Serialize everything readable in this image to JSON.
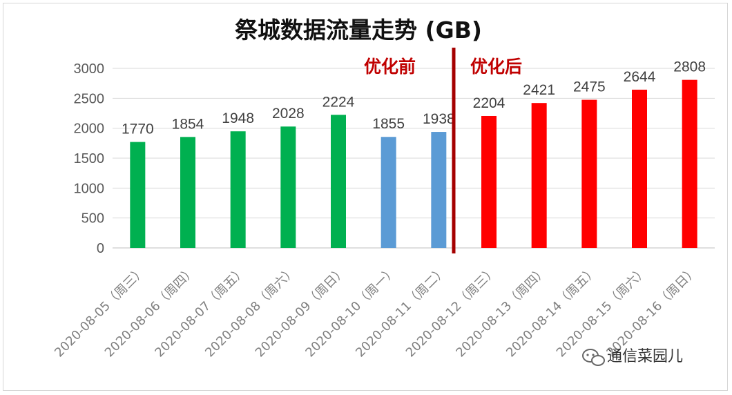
{
  "chart_data": {
    "type": "bar",
    "title": "祭城数据流量走势 (GB)",
    "categories": [
      "2020-08-05（周三）",
      "2020-08-06（周四）",
      "2020-08-07（周五）",
      "2020-08-08（周六）",
      "2020-08-09（周日）",
      "2020-08-10（周一）",
      "2020-08-11（周二）",
      "2020-08-12（周三）",
      "2020-08-13（周四）",
      "2020-08-14（周五）",
      "2020-08-15（周六）",
      "2020-08-16（周日）"
    ],
    "values": [
      1770,
      1854,
      1948,
      2028,
      2224,
      1855,
      1938,
      2204,
      2421,
      2475,
      2644,
      2808
    ],
    "bar_colors": [
      "#00b050",
      "#00b050",
      "#00b050",
      "#00b050",
      "#00b050",
      "#5b9bd5",
      "#5b9bd5",
      "#ff0000",
      "#ff0000",
      "#ff0000",
      "#ff0000",
      "#ff0000"
    ],
    "ylim": [
      0,
      3000
    ],
    "yticks": [
      0,
      500,
      1000,
      1500,
      2000,
      2500,
      3000
    ],
    "grid": true,
    "annotations": {
      "before": "优化前",
      "after": "优化后",
      "divider_color": "#a50000"
    }
  },
  "watermark": {
    "text": "通信菜园儿",
    "icon": "wechat-icon"
  }
}
